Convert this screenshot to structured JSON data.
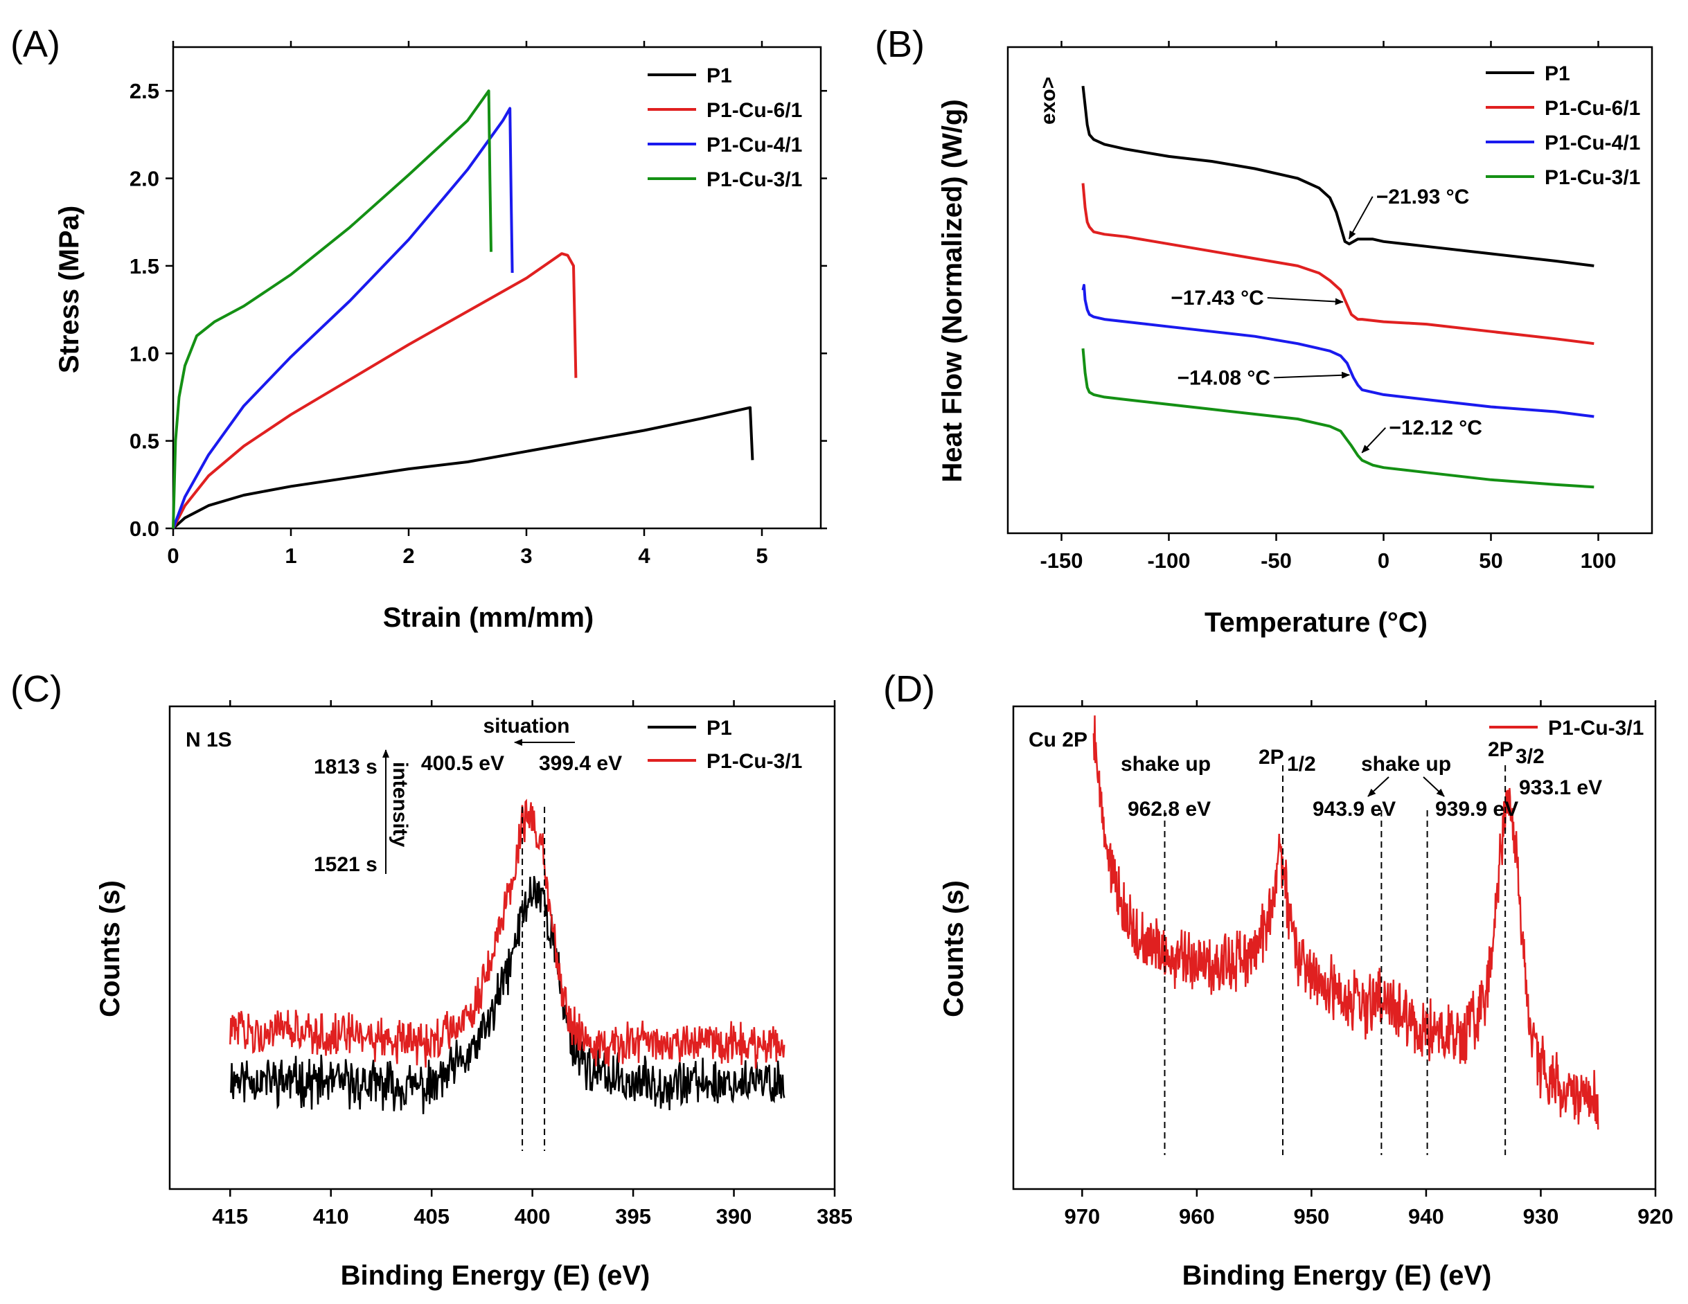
{
  "chart_data": [
    {
      "type": "line",
      "panel_label": "(A)",
      "xlabel": "Strain (mm/mm)",
      "ylabel": "Stress (MPa)",
      "xlim": [
        0,
        5.5
      ],
      "ylim": [
        0,
        2.75
      ],
      "xticks": [
        0,
        1,
        2,
        3,
        4,
        5
      ],
      "yticks": [
        0.0,
        0.5,
        1.0,
        1.5,
        2.0,
        2.5
      ],
      "tick_labels": {
        "x": [
          "0",
          "1",
          "2",
          "3",
          "4",
          "5"
        ],
        "y": [
          "0.0",
          "0.5",
          "1.0",
          "1.5",
          "2.0",
          "2.5"
        ]
      },
      "series": [
        {
          "name": "P1",
          "color": "#000000",
          "x": [
            0,
            0.1,
            0.3,
            0.6,
            1.0,
            1.5,
            2.0,
            2.5,
            3.0,
            3.5,
            4.0,
            4.5,
            4.9,
            4.92
          ],
          "y": [
            0,
            0.06,
            0.13,
            0.19,
            0.24,
            0.29,
            0.34,
            0.38,
            0.44,
            0.5,
            0.56,
            0.63,
            0.69,
            0.39
          ]
        },
        {
          "name": "P1-Cu-6/1",
          "color": "#e02020",
          "x": [
            0,
            0.1,
            0.3,
            0.6,
            1.0,
            1.5,
            2.0,
            2.5,
            3.0,
            3.3,
            3.35,
            3.4,
            3.42
          ],
          "y": [
            0,
            0.13,
            0.3,
            0.47,
            0.65,
            0.85,
            1.05,
            1.24,
            1.43,
            1.57,
            1.56,
            1.5,
            0.86
          ]
        },
        {
          "name": "P1-Cu-4/1",
          "color": "#1a1aee",
          "x": [
            0,
            0.1,
            0.3,
            0.6,
            1.0,
            1.5,
            2.0,
            2.5,
            2.8,
            2.86,
            2.87,
            2.88
          ],
          "y": [
            0,
            0.18,
            0.42,
            0.7,
            0.98,
            1.3,
            1.65,
            2.05,
            2.33,
            2.4,
            1.9,
            1.46
          ]
        },
        {
          "name": "P1-Cu-3/1",
          "color": "#149014",
          "x": [
            0,
            0.02,
            0.05,
            0.1,
            0.2,
            0.35,
            0.6,
            1.0,
            1.5,
            2.0,
            2.5,
            2.68,
            2.69,
            2.7
          ],
          "y": [
            0,
            0.5,
            0.75,
            0.93,
            1.1,
            1.18,
            1.27,
            1.45,
            1.72,
            2.02,
            2.33,
            2.5,
            2.0,
            1.58
          ]
        }
      ]
    },
    {
      "type": "line",
      "panel_label": "(B)",
      "xlabel": "Temperature (°C)",
      "ylabel": "Heat Flow (Normalized) (W/g)",
      "y_annotation": "exo>",
      "xlim": [
        -175,
        125
      ],
      "ylim": [
        0,
        1
      ],
      "xticks": [
        -150,
        -100,
        -50,
        0,
        50,
        100
      ],
      "tick_labels": {
        "x": [
          "-150",
          "-100",
          "-50",
          "0",
          "50",
          "100"
        ]
      },
      "series": [
        {
          "name": "P1",
          "color": "#000000",
          "x": [
            -140,
            -139,
            -138,
            -137,
            -135,
            -130,
            -120,
            -100,
            -80,
            -60,
            -40,
            -30,
            -25,
            -22,
            -20,
            -18,
            -16,
            -12,
            -5,
            0,
            20,
            50,
            80,
            98
          ],
          "y": [
            0.92,
            0.88,
            0.84,
            0.82,
            0.81,
            0.8,
            0.79,
            0.775,
            0.765,
            0.75,
            0.73,
            0.71,
            0.69,
            0.66,
            0.63,
            0.6,
            0.595,
            0.605,
            0.605,
            0.6,
            0.59,
            0.575,
            0.56,
            0.55
          ]
        },
        {
          "name": "P1-Cu-6/1",
          "color": "#e02020",
          "x": [
            -140,
            -139,
            -138,
            -137,
            -135,
            -130,
            -120,
            -100,
            -80,
            -60,
            -40,
            -30,
            -25,
            -20,
            -17,
            -15,
            -12,
            -10,
            0,
            20,
            50,
            80,
            98
          ],
          "y": [
            0.72,
            0.67,
            0.64,
            0.63,
            0.62,
            0.615,
            0.61,
            0.595,
            0.58,
            0.565,
            0.55,
            0.535,
            0.52,
            0.5,
            0.47,
            0.45,
            0.44,
            0.44,
            0.435,
            0.43,
            0.415,
            0.4,
            0.39
          ]
        },
        {
          "name": "P1-Cu-4/1",
          "color": "#1a1aee",
          "x": [
            -140,
            -139.5,
            -139,
            -138,
            -137,
            -135,
            -130,
            -120,
            -100,
            -80,
            -60,
            -40,
            -25,
            -20,
            -17,
            -14,
            -12,
            -10,
            -5,
            0,
            20,
            50,
            80,
            98
          ],
          "y": [
            0.5,
            0.51,
            0.48,
            0.46,
            0.45,
            0.445,
            0.44,
            0.435,
            0.425,
            0.415,
            0.405,
            0.39,
            0.375,
            0.365,
            0.35,
            0.32,
            0.305,
            0.295,
            0.29,
            0.285,
            0.275,
            0.26,
            0.25,
            0.24
          ]
        },
        {
          "name": "P1-Cu-3/1",
          "color": "#149014",
          "x": [
            -140,
            -139,
            -138,
            -137,
            -135,
            -130,
            -120,
            -100,
            -80,
            -60,
            -40,
            -25,
            -20,
            -15,
            -12,
            -10,
            -5,
            0,
            20,
            50,
            80,
            98
          ],
          "y": [
            0.38,
            0.33,
            0.3,
            0.29,
            0.285,
            0.28,
            0.275,
            0.265,
            0.255,
            0.245,
            0.235,
            0.22,
            0.21,
            0.18,
            0.16,
            0.15,
            0.14,
            0.135,
            0.125,
            0.11,
            0.1,
            0.095
          ]
        }
      ],
      "annotations": [
        {
          "text": "−21.93 °C",
          "series": "P1",
          "x": -18
        },
        {
          "text": "−17.43 °C",
          "series": "P1-Cu-6/1",
          "x": -17
        },
        {
          "text": "−14.08 °C",
          "series": "P1-Cu-4/1",
          "x": -14
        },
        {
          "text": "−12.12 °C",
          "series": "P1-Cu-3/1",
          "x": -12
        }
      ]
    },
    {
      "type": "line",
      "panel_label": "(C)",
      "title": "N 1S",
      "xlabel": "Binding Energy (E) (eV)",
      "ylabel": "Counts (s)",
      "xlim": [
        418,
        385
      ],
      "ylim": [
        0,
        1
      ],
      "xticks": [
        415,
        410,
        405,
        400,
        395,
        390,
        385
      ],
      "tick_labels": {
        "x": [
          "415",
          "410",
          "405",
          "400",
          "395",
          "390",
          "385"
        ]
      },
      "series": [
        {
          "name": "P1",
          "color": "#000000",
          "noise": 0.04,
          "x": [
            415,
            410,
            405,
            403,
            402,
            401,
            400.5,
            400,
            399.5,
            399,
            398.5,
            398,
            397,
            395,
            390,
            387.5
          ],
          "y": [
            0.23,
            0.22,
            0.21,
            0.28,
            0.36,
            0.48,
            0.57,
            0.62,
            0.61,
            0.52,
            0.39,
            0.3,
            0.24,
            0.22,
            0.22,
            0.22
          ]
        },
        {
          "name": "P1-Cu-3/1",
          "color": "#e02020",
          "noise": 0.035,
          "x": [
            415,
            410,
            405,
            403,
            402,
            401,
            400.5,
            400,
            399.5,
            399,
            398.5,
            398,
            397,
            395,
            390,
            387.5
          ],
          "y": [
            0.33,
            0.32,
            0.3,
            0.37,
            0.48,
            0.64,
            0.76,
            0.78,
            0.7,
            0.55,
            0.4,
            0.34,
            0.3,
            0.3,
            0.3,
            0.3
          ]
        }
      ],
      "reference_lines": [
        400.5,
        399.4
      ],
      "annotations": [
        {
          "text": "situation"
        },
        {
          "text": "400.5 eV",
          "x": 400.5
        },
        {
          "text": "399.4 eV",
          "x": 399.4
        },
        {
          "text": "1813 s"
        },
        {
          "text": "1521 s"
        },
        {
          "text": "intensity"
        }
      ]
    },
    {
      "type": "line",
      "panel_label": "(D)",
      "title": "Cu 2P",
      "xlabel": "Binding Energy (E) (eV)",
      "ylabel": "Counts (s)",
      "xlim": [
        976,
        920
      ],
      "ylim": [
        0,
        1
      ],
      "xticks": [
        970,
        960,
        950,
        940,
        930,
        920
      ],
      "tick_labels": {
        "x": [
          "970",
          "960",
          "950",
          "940",
          "930",
          "920"
        ]
      },
      "series": [
        {
          "name": "P1-Cu-3/1",
          "color": "#e02020",
          "noise": 0.05,
          "x": [
            969,
            968.5,
            968,
            967,
            966,
            965,
            962,
            958,
            955,
            953.5,
            952.8,
            952.3,
            951.5,
            950,
            945,
            943.9,
            940,
            937,
            935,
            934,
            933.5,
            933,
            932.5,
            932,
            931.5,
            931,
            930,
            928,
            925
          ],
          "y": [
            0.95,
            0.82,
            0.73,
            0.64,
            0.56,
            0.52,
            0.48,
            0.46,
            0.49,
            0.58,
            0.72,
            0.62,
            0.5,
            0.44,
            0.37,
            0.4,
            0.33,
            0.31,
            0.38,
            0.55,
            0.7,
            0.82,
            0.78,
            0.65,
            0.5,
            0.35,
            0.25,
            0.2,
            0.18
          ]
        }
      ],
      "reference_lines": [
        962.8,
        952.5,
        943.9,
        939.9,
        933.1
      ],
      "annotations": [
        {
          "text": "shake up",
          "group": 1
        },
        {
          "text": "962.8 eV",
          "x": 962.8
        },
        {
          "text": "2P",
          "sub": "1/2",
          "x": 952.5
        },
        {
          "text": "shake up",
          "group": 2
        },
        {
          "text": "943.9 eV",
          "x": 943.9
        },
        {
          "text": "939.9 eV",
          "x": 939.9
        },
        {
          "text": "2P",
          "sub": "3/2",
          "x": 933.1
        },
        {
          "text": "933.1 eV",
          "x": 933.1
        }
      ]
    }
  ]
}
